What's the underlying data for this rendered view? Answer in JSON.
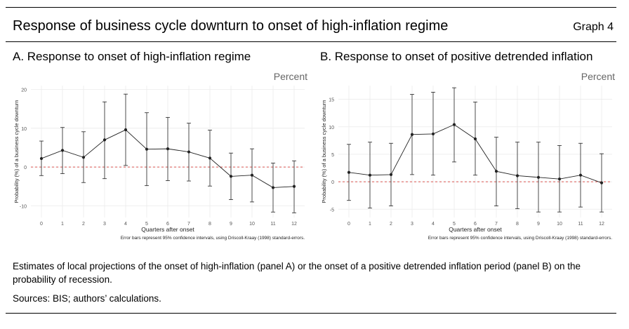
{
  "header": {
    "title": "Response of business cycle downturn to onset of high-inflation regime",
    "graph_label": "Graph 4"
  },
  "footer": {
    "note": "Estimates of local projections of the onset of high-inflation (panel A) or the onset of a positive detrended inflation period (panel B) on the probability of recession.",
    "sources": "Sources: BIS; authors’ calculations."
  },
  "colors": {
    "line": "#222222",
    "zero_line": "#d9534f",
    "grid": "#ebebeb",
    "unit_text": "#666666"
  },
  "chart_data": [
    {
      "type": "line",
      "panel_title": "A. Response to onset of high-inflation regime",
      "unit": "Percent",
      "xlabel": "Quarters after onset",
      "ylabel": "Probability (%) of a business cycle downturn",
      "note": "Error bars represent 95% confidence intervals, using Driscoll-Kraay (1998) standard-errors.",
      "x": [
        0,
        1,
        2,
        3,
        4,
        5,
        6,
        7,
        8,
        9,
        10,
        11,
        12
      ],
      "values": [
        2.2,
        4.3,
        2.5,
        7.0,
        9.6,
        4.6,
        4.7,
        3.9,
        2.3,
        -2.4,
        -2.1,
        -5.3,
        -5.0
      ],
      "ci_low": [
        -2.2,
        -1.7,
        -4.0,
        -3.0,
        0.4,
        -4.8,
        -3.5,
        -3.6,
        -4.9,
        -8.4,
        -9.0,
        -11.6,
        -11.8
      ],
      "ci_high": [
        6.7,
        10.2,
        9.1,
        16.8,
        18.8,
        14.0,
        12.8,
        11.3,
        9.5,
        3.6,
        4.7,
        1.0,
        1.6
      ],
      "ylim": [
        -13,
        21
      ],
      "yticks": [
        -10,
        0,
        10,
        20
      ],
      "grid": true,
      "reference_line": 0
    },
    {
      "type": "line",
      "panel_title": "B. Response to onset of positive detrended inflation",
      "unit": "Percent",
      "xlabel": "Quarters after onset",
      "ylabel": "Probability (%) of a business cycle downturn",
      "note": "Error bars represent 95% confidence intervals, using Driscoll-Kraay (1998) standard-errors.",
      "x": [
        0,
        1,
        2,
        3,
        4,
        5,
        6,
        7,
        8,
        9,
        10,
        11,
        12
      ],
      "values": [
        1.7,
        1.2,
        1.3,
        8.6,
        8.7,
        10.4,
        7.8,
        1.9,
        1.1,
        0.8,
        0.5,
        1.2,
        -0.2
      ],
      "ci_low": [
        -3.4,
        -4.8,
        -4.4,
        1.3,
        1.2,
        3.6,
        1.2,
        -4.4,
        -4.9,
        -5.5,
        -5.5,
        -4.6,
        -5.5
      ],
      "ci_high": [
        6.8,
        7.2,
        7.0,
        15.9,
        16.3,
        17.1,
        14.5,
        8.1,
        7.2,
        7.2,
        6.6,
        7.0,
        5.1
      ],
      "ylim": [
        -6.5,
        17.5
      ],
      "yticks": [
        -5,
        0,
        5,
        10,
        15
      ],
      "grid": true,
      "reference_line": 0
    }
  ]
}
